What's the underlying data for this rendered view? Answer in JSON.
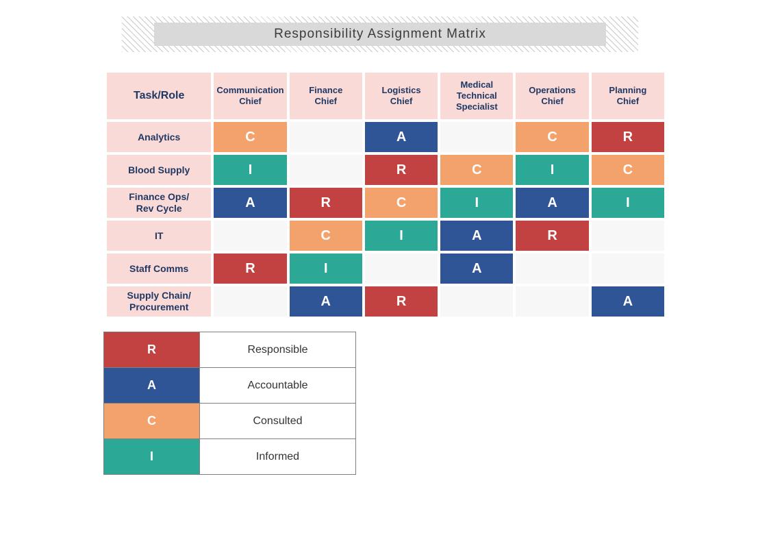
{
  "title": "Responsibility Assignment Matrix",
  "colors": {
    "R": "#c24141",
    "A": "#2f5597",
    "C": "#f4a26c",
    "I": "#2ca896",
    "empty": "#f7f7f7",
    "header_bg": "#fadad7",
    "header_text": "#1f3864",
    "title_bg": "#d9d9d9"
  },
  "matrix": {
    "corner": "Task/Role",
    "columns": [
      "Communication Chief",
      "Finance Chief",
      "Logistics Chief",
      "Medical Technical Specialist",
      "Operations Chief",
      "Planning Chief"
    ],
    "rows": [
      {
        "label": "Analytics",
        "cells": [
          "C",
          "",
          "A",
          "",
          "C",
          "R"
        ]
      },
      {
        "label": "Blood Supply",
        "cells": [
          "I",
          "",
          "R",
          "C",
          "I",
          "C"
        ]
      },
      {
        "label": "Finance Ops/ Rev Cycle",
        "cells": [
          "A",
          "R",
          "C",
          "I",
          "A",
          "I"
        ]
      },
      {
        "label": "IT",
        "cells": [
          "",
          "C",
          "I",
          "A",
          "R",
          ""
        ]
      },
      {
        "label": "Staff Comms",
        "cells": [
          "R",
          "I",
          "",
          "A",
          "",
          ""
        ]
      },
      {
        "label": "Supply Chain/ Procurement",
        "cells": [
          "",
          "A",
          "R",
          "",
          "",
          "A"
        ]
      }
    ]
  },
  "legend": [
    {
      "code": "R",
      "label": "Responsible"
    },
    {
      "code": "A",
      "label": "Accountable"
    },
    {
      "code": "C",
      "label": "Consulted"
    },
    {
      "code": "I",
      "label": "Informed"
    }
  ]
}
